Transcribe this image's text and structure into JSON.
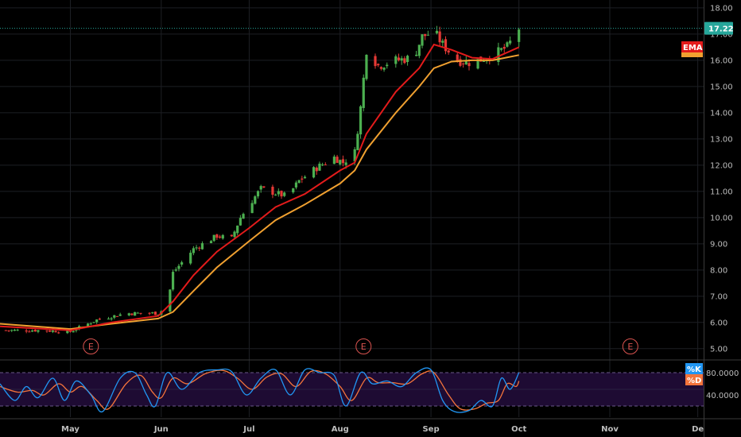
{
  "chart_data": {
    "type": "candlestick",
    "price_axis": {
      "ylim": [
        4.6,
        18.3
      ],
      "ticks": [
        "5.00",
        "6.00",
        "7.00",
        "8.00",
        "9.00",
        "10.00",
        "11.00",
        "12.00",
        "13.00",
        "14.00",
        "15.00",
        "16.00",
        "17.00",
        "18.00"
      ]
    },
    "last_price": {
      "value": 17.22,
      "label": "17.22",
      "color": "#26a69a"
    },
    "time_axis": {
      "start": "2018-04-07",
      "end": "2018-12-03",
      "labels": [
        {
          "date": "2018-05-01",
          "label": "May"
        },
        {
          "date": "2018-06-01",
          "label": "Jun"
        },
        {
          "date": "2018-07-01",
          "label": "Jul"
        },
        {
          "date": "2018-08-01",
          "label": "Aug"
        },
        {
          "date": "2018-09-01",
          "label": "Sep"
        },
        {
          "date": "2018-10-01",
          "label": "Oct"
        },
        {
          "date": "2018-11-01",
          "label": "Nov"
        },
        {
          "date": "2018-12-01",
          "label": "De"
        }
      ]
    },
    "ohlc_keypoints": [
      [
        "2018-04-07",
        5.7
      ],
      [
        "2018-04-20",
        5.7
      ],
      [
        "2018-05-01",
        5.65
      ],
      [
        "2018-05-10",
        6.1
      ],
      [
        "2018-05-20",
        6.35
      ],
      [
        "2018-05-31",
        6.35
      ],
      [
        "2018-06-03",
        6.6
      ],
      [
        "2018-06-05",
        7.9
      ],
      [
        "2018-06-12",
        8.8
      ],
      [
        "2018-06-20",
        9.3
      ],
      [
        "2018-06-25",
        9.2
      ],
      [
        "2018-06-28",
        10.0
      ],
      [
        "2018-07-01",
        10.5
      ],
      [
        "2018-07-05",
        11.1
      ],
      [
        "2018-07-11",
        10.9
      ],
      [
        "2018-07-14",
        10.8
      ],
      [
        "2018-07-18",
        11.4
      ],
      [
        "2018-07-24",
        11.9
      ],
      [
        "2018-07-30",
        12.3
      ],
      [
        "2018-08-02",
        12.1
      ],
      [
        "2018-08-06",
        12.5
      ],
      [
        "2018-08-08",
        14.2
      ],
      [
        "2018-08-10",
        16.4
      ],
      [
        "2018-08-14",
        15.8
      ],
      [
        "2018-08-20",
        16.0
      ],
      [
        "2018-08-26",
        16.1
      ],
      [
        "2018-08-29",
        16.9
      ],
      [
        "2018-09-02",
        17.1
      ],
      [
        "2018-09-05",
        16.6
      ],
      [
        "2018-09-10",
        16.0
      ],
      [
        "2018-09-15",
        15.9
      ],
      [
        "2018-09-22",
        16.2
      ],
      [
        "2018-09-27",
        16.5
      ],
      [
        "2018-10-01",
        17.22
      ]
    ],
    "ema_fast": {
      "name": "EMA",
      "color": "#e31b1b",
      "points": [
        [
          "2018-04-07",
          5.85
        ],
        [
          "2018-05-01",
          5.7
        ],
        [
          "2018-05-15",
          6.0
        ],
        [
          "2018-05-31",
          6.25
        ],
        [
          "2018-06-05",
          6.8
        ],
        [
          "2018-06-12",
          7.8
        ],
        [
          "2018-06-20",
          8.7
        ],
        [
          "2018-07-01",
          9.6
        ],
        [
          "2018-07-10",
          10.4
        ],
        [
          "2018-07-20",
          10.9
        ],
        [
          "2018-08-01",
          11.8
        ],
        [
          "2018-08-06",
          12.1
        ],
        [
          "2018-08-10",
          13.2
        ],
        [
          "2018-08-20",
          14.8
        ],
        [
          "2018-08-28",
          15.7
        ],
        [
          "2018-09-02",
          16.6
        ],
        [
          "2018-09-08",
          16.4
        ],
        [
          "2018-09-15",
          16.1
        ],
        [
          "2018-09-22",
          16.05
        ],
        [
          "2018-10-01",
          16.5
        ]
      ]
    },
    "ema_slow": {
      "color": "#f0a030",
      "points": [
        [
          "2018-04-07",
          5.95
        ],
        [
          "2018-05-01",
          5.75
        ],
        [
          "2018-05-15",
          5.95
        ],
        [
          "2018-05-31",
          6.15
        ],
        [
          "2018-06-05",
          6.4
        ],
        [
          "2018-06-12",
          7.2
        ],
        [
          "2018-06-20",
          8.1
        ],
        [
          "2018-07-01",
          9.1
        ],
        [
          "2018-07-10",
          9.9
        ],
        [
          "2018-07-20",
          10.5
        ],
        [
          "2018-08-01",
          11.3
        ],
        [
          "2018-08-06",
          11.8
        ],
        [
          "2018-08-10",
          12.6
        ],
        [
          "2018-08-20",
          14.0
        ],
        [
          "2018-08-28",
          15.0
        ],
        [
          "2018-09-02",
          15.7
        ],
        [
          "2018-09-08",
          15.95
        ],
        [
          "2018-09-15",
          16.0
        ],
        [
          "2018-09-22",
          16.0
        ],
        [
          "2018-10-01",
          16.2
        ]
      ]
    },
    "earnings_markers": [
      {
        "date": "2018-05-08",
        "label": "E"
      },
      {
        "date": "2018-08-09",
        "label": "E"
      },
      {
        "date": "2018-11-08",
        "label": "E"
      }
    ],
    "ema_badge": {
      "label": "EMA",
      "color": "#e31b1b"
    },
    "stochastic": {
      "ylim": [
        0,
        100
      ],
      "bands": [
        20,
        80
      ],
      "ticks": [
        {
          "value": 80,
          "label": "80.0000"
        },
        {
          "value": 40,
          "label": "40.0000"
        }
      ],
      "k": {
        "name": "%K",
        "color": "#2196f3",
        "points": [
          [
            "2018-04-07",
            60
          ],
          [
            "2018-04-12",
            30
          ],
          [
            "2018-04-16",
            55
          ],
          [
            "2018-04-20",
            35
          ],
          [
            "2018-04-25",
            70
          ],
          [
            "2018-04-29",
            30
          ],
          [
            "2018-05-03",
            65
          ],
          [
            "2018-05-08",
            40
          ],
          [
            "2018-05-12",
            10
          ],
          [
            "2018-05-18",
            70
          ],
          [
            "2018-05-23",
            80
          ],
          [
            "2018-05-27",
            40
          ],
          [
            "2018-05-30",
            20
          ],
          [
            "2018-06-03",
            80
          ],
          [
            "2018-06-08",
            50
          ],
          [
            "2018-06-14",
            80
          ],
          [
            "2018-06-20",
            85
          ],
          [
            "2018-06-25",
            82
          ],
          [
            "2018-06-30",
            40
          ],
          [
            "2018-07-05",
            70
          ],
          [
            "2018-07-10",
            85
          ],
          [
            "2018-07-15",
            40
          ],
          [
            "2018-07-20",
            85
          ],
          [
            "2018-07-25",
            80
          ],
          [
            "2018-07-30",
            75
          ],
          [
            "2018-08-03",
            20
          ],
          [
            "2018-08-08",
            80
          ],
          [
            "2018-08-12",
            60
          ],
          [
            "2018-08-17",
            65
          ],
          [
            "2018-08-22",
            55
          ],
          [
            "2018-08-27",
            80
          ],
          [
            "2018-09-01",
            85
          ],
          [
            "2018-09-05",
            30
          ],
          [
            "2018-09-09",
            10
          ],
          [
            "2018-09-14",
            12
          ],
          [
            "2018-09-18",
            30
          ],
          [
            "2018-09-22",
            20
          ],
          [
            "2018-09-25",
            70
          ],
          [
            "2018-09-28",
            50
          ],
          [
            "2018-10-01",
            80
          ]
        ]
      },
      "d": {
        "name": "%D",
        "color": "#f4743b",
        "points": [
          [
            "2018-04-07",
            55
          ],
          [
            "2018-04-13",
            45
          ],
          [
            "2018-04-18",
            48
          ],
          [
            "2018-04-22",
            40
          ],
          [
            "2018-04-27",
            60
          ],
          [
            "2018-05-01",
            45
          ],
          [
            "2018-05-05",
            55
          ],
          [
            "2018-05-10",
            30
          ],
          [
            "2018-05-14",
            15
          ],
          [
            "2018-05-20",
            60
          ],
          [
            "2018-05-25",
            75
          ],
          [
            "2018-05-29",
            45
          ],
          [
            "2018-06-01",
            35
          ],
          [
            "2018-06-05",
            70
          ],
          [
            "2018-06-10",
            60
          ],
          [
            "2018-06-16",
            78
          ],
          [
            "2018-06-22",
            84
          ],
          [
            "2018-06-27",
            70
          ],
          [
            "2018-07-02",
            50
          ],
          [
            "2018-07-07",
            72
          ],
          [
            "2018-07-12",
            78
          ],
          [
            "2018-07-17",
            55
          ],
          [
            "2018-07-22",
            82
          ],
          [
            "2018-07-27",
            78
          ],
          [
            "2018-08-01",
            55
          ],
          [
            "2018-08-05",
            30
          ],
          [
            "2018-08-10",
            70
          ],
          [
            "2018-08-14",
            62
          ],
          [
            "2018-08-19",
            62
          ],
          [
            "2018-08-24",
            60
          ],
          [
            "2018-08-29",
            78
          ],
          [
            "2018-09-02",
            80
          ],
          [
            "2018-09-07",
            40
          ],
          [
            "2018-09-11",
            15
          ],
          [
            "2018-09-16",
            15
          ],
          [
            "2018-09-20",
            25
          ],
          [
            "2018-09-24",
            30
          ],
          [
            "2018-09-27",
            60
          ],
          [
            "2018-09-30",
            55
          ],
          [
            "2018-10-01",
            65
          ]
        ]
      }
    }
  }
}
